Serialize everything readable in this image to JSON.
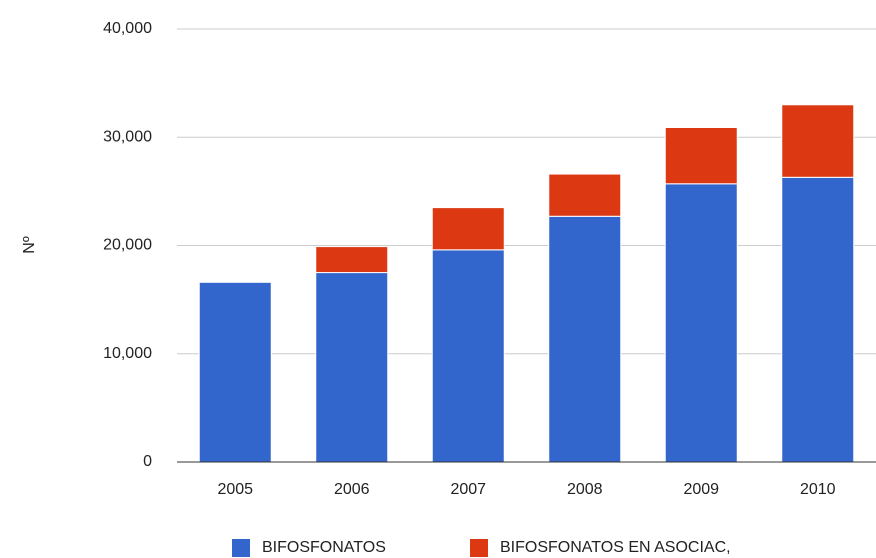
{
  "chart_data": {
    "type": "stacked_bar",
    "y_label": "Nº",
    "categories": [
      "2005",
      "2006",
      "2007",
      "2008",
      "2009",
      "2010"
    ],
    "series": [
      {
        "name": "BIFOSFONATOS",
        "color": "#3366cc",
        "values": [
          16600,
          17500,
          19600,
          22700,
          25700,
          26300
        ]
      },
      {
        "name": "BIFOSFONATOS EN ASOCIAC,",
        "color": "#dc3912",
        "values": [
          0,
          2400,
          3900,
          3900,
          5200,
          6700
        ]
      }
    ],
    "ylim": [
      0,
      40000
    ],
    "yticks": [
      0,
      {
        "value": 10000,
        "label": "10,000"
      },
      {
        "value": 20000,
        "label": "20,000"
      },
      {
        "value": 30000,
        "label": "30,000"
      },
      {
        "value": 40000,
        "label": "40,000"
      }
    ],
    "grid": true,
    "legend": "bottom"
  }
}
